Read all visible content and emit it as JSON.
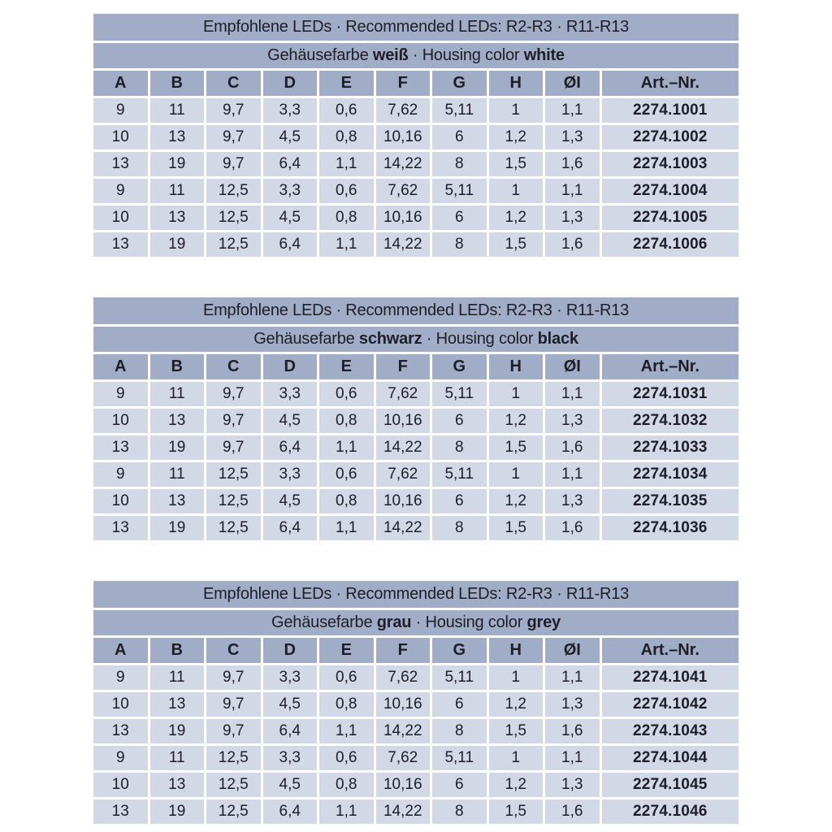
{
  "colors": {
    "header_bg": "#a1adc6",
    "row_bg": "#d2d8e5",
    "text": "#1e1e2a",
    "gap": "#ffffff"
  },
  "shared": {
    "title": "Empfohlene LEDs · Recommended LEDs: R2-R3 · R11-R13",
    "columns": [
      "A",
      "B",
      "C",
      "D",
      "E",
      "F",
      "G",
      "H",
      "ØI",
      "Art.–Nr."
    ]
  },
  "tables": [
    {
      "name": "white",
      "subheader": {
        "prefix": "Gehäusefarbe ",
        "color_de": "weiß",
        "mid": " · Housing color ",
        "color_en": "white"
      },
      "rows": [
        [
          "9",
          "11",
          "9,7",
          "3,3",
          "0,6",
          "7,62",
          "5,11",
          "1",
          "1,1",
          "2274.1001"
        ],
        [
          "10",
          "13",
          "9,7",
          "4,5",
          "0,8",
          "10,16",
          "6",
          "1,2",
          "1,3",
          "2274.1002"
        ],
        [
          "13",
          "19",
          "9,7",
          "6,4",
          "1,1",
          "14,22",
          "8",
          "1,5",
          "1,6",
          "2274.1003"
        ],
        [
          "9",
          "11",
          "12,5",
          "3,3",
          "0,6",
          "7,62",
          "5,11",
          "1",
          "1,1",
          "2274.1004"
        ],
        [
          "10",
          "13",
          "12,5",
          "4,5",
          "0,8",
          "10,16",
          "6",
          "1,2",
          "1,3",
          "2274.1005"
        ],
        [
          "13",
          "19",
          "12,5",
          "6,4",
          "1,1",
          "14,22",
          "8",
          "1,5",
          "1,6",
          "2274.1006"
        ]
      ]
    },
    {
      "name": "black",
      "subheader": {
        "prefix": "Gehäusefarbe ",
        "color_de": "schwarz",
        "mid": " · Housing color ",
        "color_en": "black"
      },
      "rows": [
        [
          "9",
          "11",
          "9,7",
          "3,3",
          "0,6",
          "7,62",
          "5,11",
          "1",
          "1,1",
          "2274.1031"
        ],
        [
          "10",
          "13",
          "9,7",
          "4,5",
          "0,8",
          "10,16",
          "6",
          "1,2",
          "1,3",
          "2274.1032"
        ],
        [
          "13",
          "19",
          "9,7",
          "6,4",
          "1,1",
          "14,22",
          "8",
          "1,5",
          "1,6",
          "2274.1033"
        ],
        [
          "9",
          "11",
          "12,5",
          "3,3",
          "0,6",
          "7,62",
          "5,11",
          "1",
          "1,1",
          "2274.1034"
        ],
        [
          "10",
          "13",
          "12,5",
          "4,5",
          "0,8",
          "10,16",
          "6",
          "1,2",
          "1,3",
          "2274.1035"
        ],
        [
          "13",
          "19",
          "12,5",
          "6,4",
          "1,1",
          "14,22",
          "8",
          "1,5",
          "1,6",
          "2274.1036"
        ]
      ]
    },
    {
      "name": "grey",
      "subheader": {
        "prefix": "Gehäusefarbe ",
        "color_de": "grau",
        "mid": " · Housing color ",
        "color_en": "grey"
      },
      "rows": [
        [
          "9",
          "11",
          "9,7",
          "3,3",
          "0,6",
          "7,62",
          "5,11",
          "1",
          "1,1",
          "2274.1041"
        ],
        [
          "10",
          "13",
          "9,7",
          "4,5",
          "0,8",
          "10,16",
          "6",
          "1,2",
          "1,3",
          "2274.1042"
        ],
        [
          "13",
          "19",
          "9,7",
          "6,4",
          "1,1",
          "14,22",
          "8",
          "1,5",
          "1,6",
          "2274.1043"
        ],
        [
          "9",
          "11",
          "12,5",
          "3,3",
          "0,6",
          "7,62",
          "5,11",
          "1",
          "1,1",
          "2274.1044"
        ],
        [
          "10",
          "13",
          "12,5",
          "4,5",
          "0,8",
          "10,16",
          "6",
          "1,2",
          "1,3",
          "2274.1045"
        ],
        [
          "13",
          "19",
          "12,5",
          "6,4",
          "1,1",
          "14,22",
          "8",
          "1,5",
          "1,6",
          "2274.1046"
        ]
      ]
    }
  ]
}
